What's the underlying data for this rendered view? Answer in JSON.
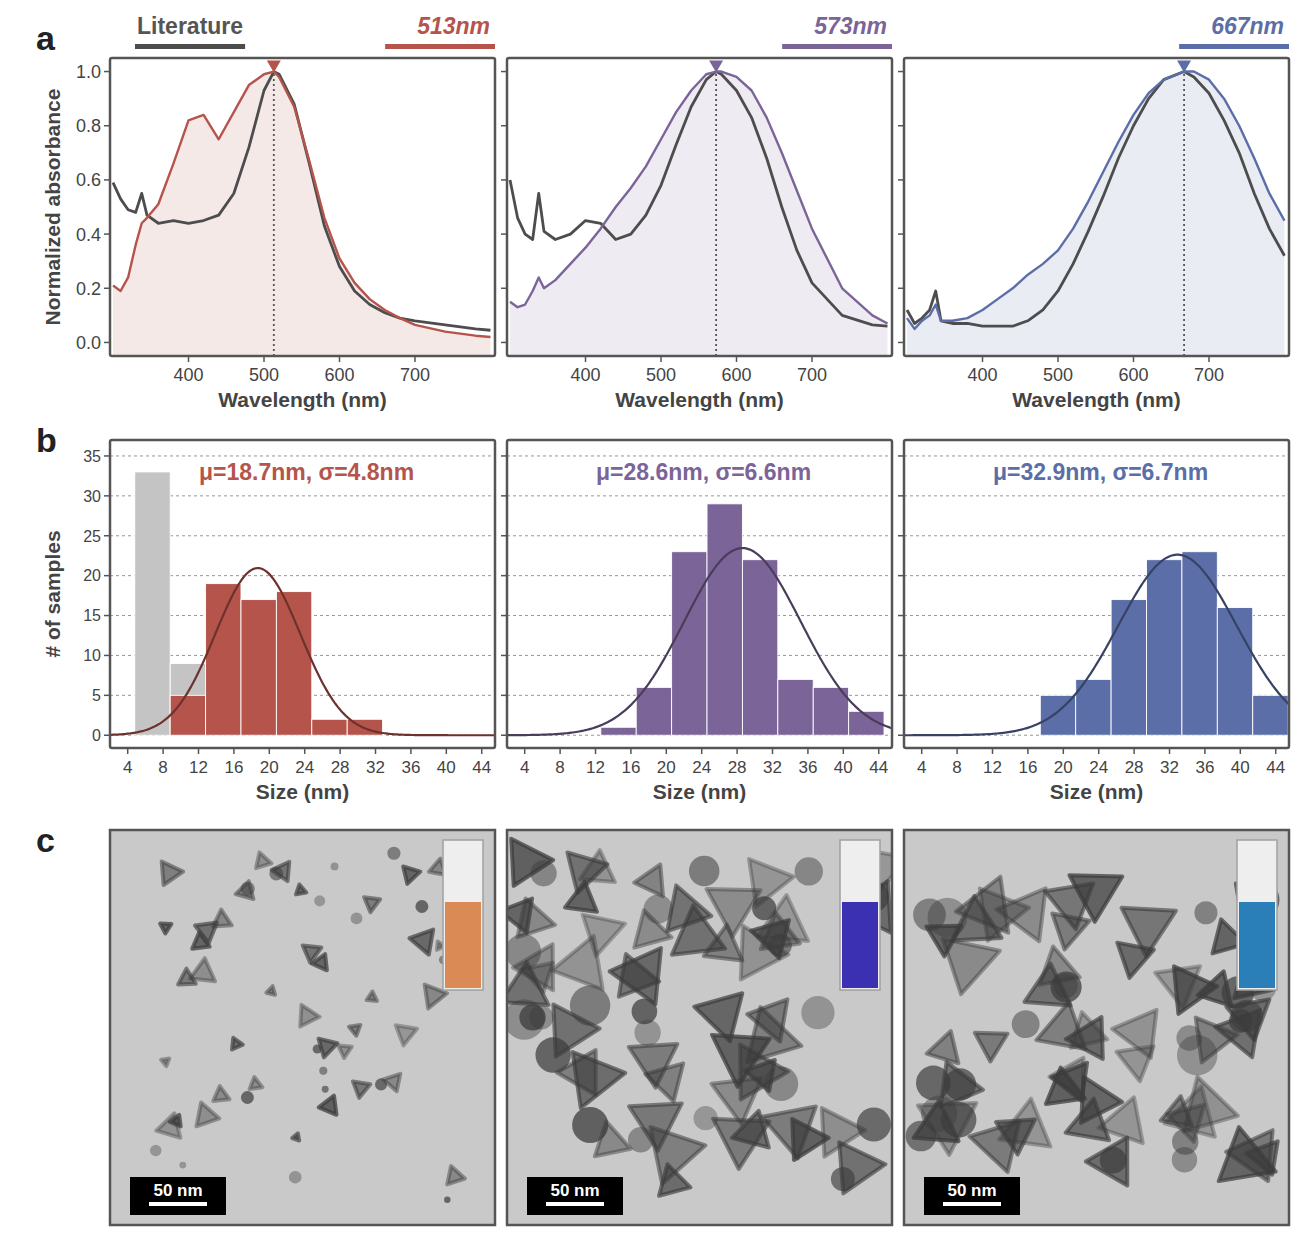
{
  "panel_labels": [
    "a",
    "b",
    "c"
  ],
  "chart_data": [
    {
      "type": "line",
      "legend": "top",
      "xlabel": "Wavelength (nm)",
      "ylabel": "Normalized absorbance",
      "xlim": [
        296,
        806
      ],
      "ylim": [
        -0.05,
        1.05
      ],
      "xticks": [
        400,
        500,
        600,
        700
      ],
      "yticks": [
        {
          "value": 0,
          "label": "0.0"
        },
        0.2,
        0.4,
        0.6,
        0.8,
        {
          "value": 1,
          "label": "1.0"
        }
      ],
      "peak": 513,
      "x": [
        300,
        310,
        320,
        330,
        338,
        345,
        360,
        380,
        400,
        420,
        440,
        460,
        480,
        500,
        513,
        520,
        540,
        560,
        580,
        600,
        620,
        640,
        660,
        680,
        700,
        740,
        780,
        800
      ],
      "series": [
        {
          "name": "Literature",
          "color": "#4d4d4d",
          "values": [
            0.59,
            0.53,
            0.49,
            0.48,
            0.55,
            0.47,
            0.44,
            0.45,
            0.44,
            0.45,
            0.47,
            0.55,
            0.72,
            0.93,
            1.0,
            0.99,
            0.88,
            0.66,
            0.43,
            0.28,
            0.19,
            0.14,
            0.11,
            0.09,
            0.08,
            0.065,
            0.05,
            0.045
          ]
        },
        {
          "name": "513nm",
          "color": "#b5544b",
          "values": [
            0.21,
            0.19,
            0.24,
            0.36,
            0.44,
            0.46,
            0.51,
            0.66,
            0.82,
            0.84,
            0.75,
            0.85,
            0.95,
            0.99,
            1.0,
            0.98,
            0.87,
            0.67,
            0.46,
            0.31,
            0.22,
            0.16,
            0.12,
            0.09,
            0.065,
            0.04,
            0.025,
            0.02
          ]
        }
      ]
    },
    {
      "type": "line",
      "legend": "top",
      "tick_labels": "x",
      "xlabel": "Wavelength (nm)",
      "xlim": [
        296,
        806
      ],
      "ylim": [
        -0.05,
        1.05
      ],
      "xticks": [
        400,
        500,
        600,
        700
      ],
      "yticks": [
        0,
        0.2,
        0.4,
        0.6,
        0.8,
        1
      ],
      "peak": 573,
      "x": [
        300,
        310,
        320,
        330,
        338,
        345,
        360,
        380,
        400,
        420,
        440,
        460,
        480,
        500,
        520,
        540,
        560,
        573,
        580,
        600,
        620,
        640,
        660,
        680,
        700,
        740,
        780,
        800
      ],
      "series": [
        {
          "color": "#4d4d4d",
          "values": [
            0.6,
            0.46,
            0.4,
            0.38,
            0.55,
            0.41,
            0.38,
            0.4,
            0.45,
            0.44,
            0.38,
            0.4,
            0.47,
            0.58,
            0.73,
            0.87,
            0.97,
            1.0,
            0.99,
            0.93,
            0.83,
            0.68,
            0.5,
            0.34,
            0.22,
            0.1,
            0.065,
            0.06
          ]
        },
        {
          "name": "573nm",
          "color": "#7b6598",
          "values": [
            0.15,
            0.13,
            0.14,
            0.19,
            0.24,
            0.2,
            0.23,
            0.29,
            0.35,
            0.42,
            0.5,
            0.57,
            0.65,
            0.75,
            0.85,
            0.93,
            0.99,
            1.0,
            1.0,
            0.98,
            0.93,
            0.83,
            0.7,
            0.56,
            0.42,
            0.2,
            0.1,
            0.07
          ]
        }
      ]
    },
    {
      "type": "line",
      "legend": "top",
      "tick_labels": "x",
      "xlabel": "Wavelength (nm)",
      "xlim": [
        296,
        806
      ],
      "ylim": [
        -0.05,
        1.05
      ],
      "xticks": [
        400,
        500,
        600,
        700
      ],
      "yticks": [
        0,
        0.2,
        0.4,
        0.6,
        0.8,
        1
      ],
      "peak": 667,
      "x": [
        300,
        310,
        320,
        330,
        338,
        345,
        360,
        380,
        400,
        420,
        440,
        460,
        480,
        500,
        520,
        540,
        560,
        580,
        600,
        620,
        640,
        667,
        680,
        700,
        720,
        740,
        760,
        780,
        800
      ],
      "series": [
        {
          "color": "#4d4d4d",
          "values": [
            0.12,
            0.07,
            0.09,
            0.12,
            0.19,
            0.08,
            0.07,
            0.07,
            0.06,
            0.06,
            0.06,
            0.08,
            0.12,
            0.19,
            0.29,
            0.41,
            0.54,
            0.68,
            0.8,
            0.9,
            0.97,
            1.0,
            0.98,
            0.92,
            0.82,
            0.7,
            0.55,
            0.42,
            0.32
          ]
        },
        {
          "name": "667nm",
          "color": "#5b6ea7",
          "values": [
            0.09,
            0.05,
            0.08,
            0.1,
            0.14,
            0.08,
            0.08,
            0.09,
            0.12,
            0.16,
            0.2,
            0.25,
            0.29,
            0.34,
            0.42,
            0.52,
            0.63,
            0.74,
            0.84,
            0.92,
            0.97,
            1.0,
            1.0,
            0.97,
            0.9,
            0.8,
            0.68,
            0.55,
            0.45
          ]
        }
      ]
    },
    {
      "type": "histogram",
      "grid": true,
      "xlabel": "Size (nm)",
      "ylabel": "# of samples",
      "xlim": [
        2,
        45.5
      ],
      "ylim": [
        -1.6,
        37
      ],
      "xticks": [
        4,
        8,
        12,
        16,
        20,
        24,
        28,
        32,
        36,
        40,
        44
      ],
      "yticks": [
        0,
        5,
        10,
        15,
        20,
        25,
        30,
        35
      ],
      "series": [
        {
          "color": "#c4c4c4",
          "bins": [
            4.8,
            8.8,
            12.8
          ],
          "counts": [
            33,
            9
          ]
        },
        {
          "color": "#b5544b",
          "bins": [
            8.8,
            12.8,
            16.8,
            20.8,
            24.8,
            28.8,
            32.8
          ],
          "counts": [
            5,
            19,
            17,
            18,
            2,
            2
          ]
        }
      ],
      "fit": {
        "label": "μ=18.7nm, σ=4.8nm",
        "mu": 18.7,
        "sigma": 4.8
      }
    },
    {
      "type": "histogram",
      "grid": true,
      "tick_labels": "x",
      "xlabel": "Size (nm)",
      "xlim": [
        2,
        45.5
      ],
      "ylim": [
        -1.6,
        37
      ],
      "xticks": [
        4,
        8,
        12,
        16,
        20,
        24,
        28,
        32,
        36,
        40,
        44
      ],
      "yticks": [
        0,
        5,
        10,
        15,
        20,
        25,
        30,
        35
      ],
      "series": [
        {
          "color": "#7b6598",
          "bins": [
            12.6,
            16.6,
            20.6,
            24.6,
            28.6,
            32.6,
            36.6,
            40.6,
            44.6
          ],
          "counts": [
            1,
            6,
            23,
            29,
            22,
            7,
            6,
            3
          ]
        }
      ],
      "fit": {
        "label": "μ=28.6nm, σ=6.6nm",
        "mu": 28.6,
        "sigma": 6.6
      }
    },
    {
      "type": "histogram",
      "grid": true,
      "tick_labels": "x",
      "xlabel": "Size (nm)",
      "xlim": [
        2,
        45.5
      ],
      "ylim": [
        -1.6,
        37
      ],
      "xticks": [
        4,
        8,
        12,
        16,
        20,
        24,
        28,
        32,
        36,
        40,
        44
      ],
      "yticks": [
        0,
        5,
        10,
        15,
        20,
        25,
        30,
        35
      ],
      "series": [
        {
          "color": "#5b6ea7",
          "bins": [
            17.4,
            21.4,
            25.4,
            29.4,
            33.4,
            37.4,
            41.4,
            45.4
          ],
          "counts": [
            5,
            7,
            17,
            22,
            23,
            16,
            5
          ]
        }
      ],
      "fit": {
        "label": "μ=32.9nm, σ=6.7nm",
        "mu": 32.9,
        "sigma": 6.7
      }
    }
  ],
  "images": [
    {
      "scale_bar": "50 nm",
      "solution_color": "#d98a55"
    },
    {
      "scale_bar": "50 nm",
      "solution_color": "#3b2fb2"
    },
    {
      "scale_bar": "50 nm",
      "solution_color": "#2a7fb8"
    }
  ]
}
